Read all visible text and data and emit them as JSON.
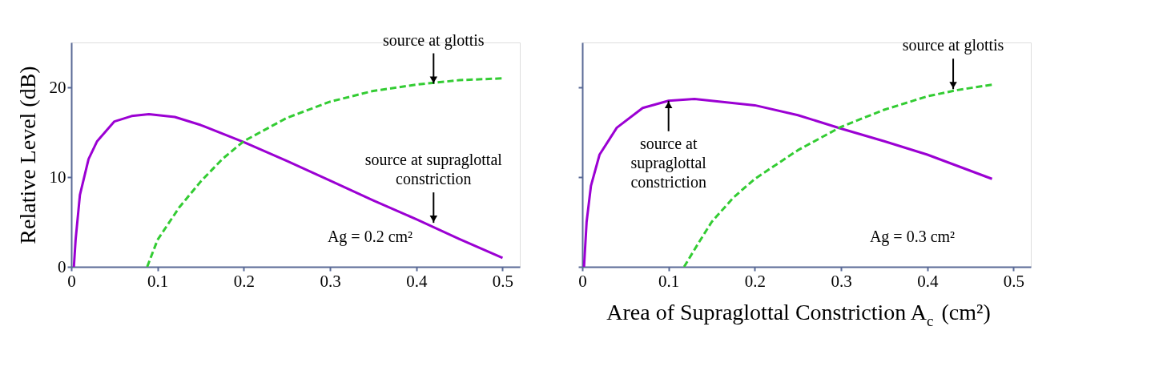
{
  "chart_data": [
    {
      "type": "line",
      "ylabel": "Relative Level (dB)",
      "xlim": [
        0,
        0.52
      ],
      "ylim": [
        0,
        25
      ],
      "xticks": [
        0,
        0.1,
        0.2,
        0.3,
        0.4,
        0.5
      ],
      "yticks": [
        0,
        10,
        20
      ],
      "grid": false,
      "series": [
        {
          "color": "#9b00d3",
          "line_style": "solid",
          "x": [
            0.003,
            0.005,
            0.01,
            0.02,
            0.03,
            0.05,
            0.07,
            0.09,
            0.12,
            0.15,
            0.2,
            0.25,
            0.3,
            0.35,
            0.4,
            0.45,
            0.5
          ],
          "values": [
            0,
            3,
            8,
            12,
            14,
            16.2,
            16.8,
            17,
            16.7,
            15.8,
            13.9,
            11.8,
            9.6,
            7.4,
            5.3,
            3.1,
            1
          ]
        },
        {
          "color": "#33cc33",
          "line_style": "dashed",
          "x": [
            0.088,
            0.1,
            0.125,
            0.15,
            0.175,
            0.2,
            0.25,
            0.3,
            0.35,
            0.4,
            0.45,
            0.5
          ],
          "values": [
            0,
            3,
            6.6,
            9.5,
            12,
            14,
            16.6,
            18.4,
            19.6,
            20.3,
            20.8,
            21
          ]
        }
      ],
      "annotations": [
        {
          "text": "source at glottis",
          "x": 0.42,
          "y": 20.4
        },
        {
          "text": "source at supraglottal\nconstriction",
          "x": 0.42,
          "y": 4.9
        },
        "Ag = 0.2 cm²"
      ]
    },
    {
      "type": "line",
      "xlabel": "Area of Supraglottal Constriction A$_{c}$ (cm²)",
      "xlim": [
        0,
        0.52
      ],
      "ylim": [
        0,
        25
      ],
      "xticks": [
        0,
        0.1,
        0.2,
        0.3,
        0.4,
        0.5
      ],
      "yticks": [
        0,
        10,
        20
      ],
      "grid": false,
      "tick_labels": "x",
      "series": [
        {
          "color": "#9b00d3",
          "line_style": "solid",
          "x": [
            0.002,
            0.005,
            0.01,
            0.02,
            0.04,
            0.07,
            0.1,
            0.13,
            0.2,
            0.25,
            0.3,
            0.35,
            0.4,
            0.475
          ],
          "values": [
            0,
            5,
            9,
            12.5,
            15.5,
            17.7,
            18.5,
            18.7,
            18,
            16.9,
            15.4,
            14,
            12.5,
            9.8
          ]
        },
        {
          "color": "#33cc33",
          "line_style": "dashed",
          "x": [
            0.118,
            0.135,
            0.15,
            0.175,
            0.2,
            0.25,
            0.3,
            0.35,
            0.4,
            0.435,
            0.475
          ],
          "values": [
            0,
            2.7,
            5,
            7.7,
            9.8,
            13,
            15.6,
            17.5,
            19,
            19.7,
            20.3
          ]
        }
      ],
      "annotations": [
        {
          "text": "source at glottis",
          "x": 0.43,
          "y": 19.8
        },
        {
          "text": "source at\nsupraglottal\nconstriction",
          "x": 0.1,
          "y": 18.5
        },
        "Ag = 0.3 cm²"
      ]
    }
  ]
}
